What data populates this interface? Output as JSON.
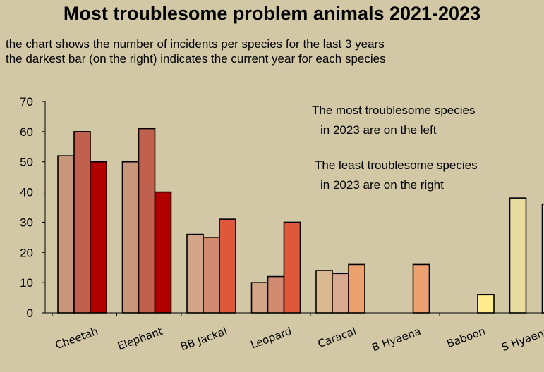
{
  "chart_data": {
    "type": "bar",
    "title": "Most troublesome problem animals 2021-2023",
    "subtitle_lines": [
      "the chart shows the number of incidents per species for the last 3 years",
      "the darkest bar (on the right) indicates the current year for each species"
    ],
    "annotations": [
      "The most troublesome species",
      "in 2023 are on the left",
      "The least troublesome species",
      "in 2023 are on the right"
    ],
    "categories": [
      "Cheetah",
      "Elephant",
      "BB Jackal",
      "Leopard",
      "Caracal",
      "B Hyaena",
      "Baboon",
      "S Hyaena"
    ],
    "series": [
      {
        "values": [
          52,
          50,
          26,
          10,
          14,
          0,
          0,
          38
        ]
      },
      {
        "values": [
          60,
          61,
          25,
          12,
          13,
          0,
          0,
          0
        ]
      },
      {
        "values": [
          50,
          40,
          31,
          30,
          16,
          16,
          6,
          36
        ]
      }
    ],
    "bar_colors": [
      [
        "#c8967a",
        "#c0604e",
        "#b00000"
      ],
      [
        "#c8967a",
        "#c0604e",
        "#b00000"
      ],
      [
        "#d4a488",
        "#d28a70",
        "#e0583a"
      ],
      [
        "#d4a488",
        "#d28a70",
        "#e0583a"
      ],
      [
        "#d8b890",
        "#d8a890",
        "#eca070"
      ],
      [
        "#d8b890",
        "#d8a890",
        "#eca070"
      ],
      [
        "#e8dca0",
        "#e8dca0",
        "#ffeb90"
      ],
      [
        "#e8dca0",
        "#e8dca0",
        "#e8dca0"
      ]
    ],
    "ylim": [
      0,
      70
    ],
    "yticks": [
      0,
      10,
      20,
      30,
      40,
      50,
      60,
      70
    ],
    "grid": false,
    "legend": "none"
  }
}
